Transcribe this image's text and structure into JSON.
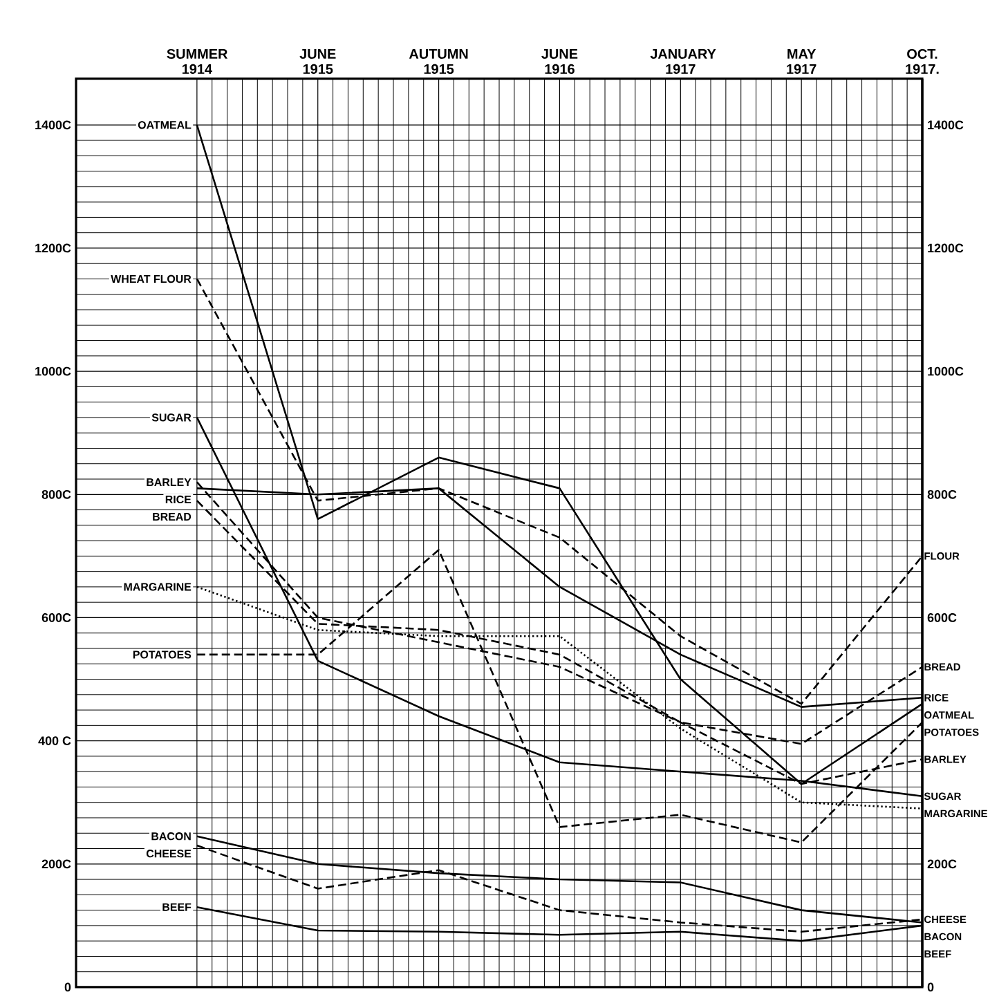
{
  "chart_data": {
    "type": "line",
    "categories": [
      "SUMMER 1914",
      "JUNE 1915",
      "AUTUMN 1915",
      "JUNE 1916",
      "JANUARY 1917",
      "MAY 1917",
      "OCT. 1917."
    ],
    "series": [
      {
        "name": "OATMEAL",
        "color": "#000000",
        "line_style": "solid",
        "values": [
          1400,
          760,
          860,
          810,
          500,
          330,
          460
        ]
      },
      {
        "name": "WHEAT FLOUR",
        "color": "#000000",
        "line_style": "dashed",
        "values": [
          1150,
          790,
          810,
          730,
          570,
          460,
          700
        ]
      },
      {
        "name": "SUGAR",
        "color": "#000000",
        "line_style": "solid",
        "values": [
          925,
          530,
          440,
          365,
          350,
          335,
          310
        ]
      },
      {
        "name": "BARLEY",
        "color": "#000000",
        "line_style": "dashed",
        "values": [
          820,
          600,
          560,
          520,
          430,
          330,
          370
        ]
      },
      {
        "name": "RICE",
        "color": "#000000",
        "line_style": "solid",
        "values": [
          810,
          800,
          810,
          650,
          540,
          455,
          470
        ]
      },
      {
        "name": "BREAD",
        "color": "#000000",
        "line_style": "dashed",
        "values": [
          790,
          590,
          580,
          540,
          430,
          395,
          520
        ]
      },
      {
        "name": "MARGARINE",
        "color": "#000000",
        "line_style": "dotted",
        "values": [
          650,
          580,
          570,
          570,
          420,
          300,
          290
        ]
      },
      {
        "name": "POTATOES",
        "color": "#000000",
        "line_style": "dashed",
        "values": [
          540,
          540,
          710,
          260,
          280,
          235,
          430
        ]
      },
      {
        "name": "BACON",
        "color": "#000000",
        "line_style": "solid",
        "values": [
          245,
          200,
          185,
          175,
          170,
          125,
          105
        ]
      },
      {
        "name": "CHEESE",
        "color": "#000000",
        "line_style": "dashed",
        "values": [
          230,
          160,
          190,
          125,
          105,
          90,
          110
        ]
      },
      {
        "name": "BEEF",
        "color": "#000000",
        "line_style": "solid",
        "values": [
          130,
          92,
          90,
          85,
          90,
          75,
          100
        ]
      }
    ],
    "ylim": [
      0,
      1475
    ],
    "yticks": [
      0,
      {
        "value": 200,
        "label": "200C"
      },
      {
        "value": 400,
        "label": "400 C"
      },
      {
        "value": 600,
        "label": "600C"
      },
      {
        "value": 800,
        "label": "800C"
      },
      {
        "value": 1000,
        "label": "1000C"
      },
      {
        "value": 1200,
        "label": "1200C"
      },
      {
        "value": 1400,
        "label": "1400C"
      }
    ],
    "y2lim": [
      0,
      1475
    ],
    "y2ticks": [
      0,
      {
        "value": 200,
        "label": "200C"
      },
      {
        "value": 600,
        "label": "600C"
      },
      {
        "value": 800,
        "label": "800C"
      },
      {
        "value": 1000,
        "label": "1000C"
      },
      {
        "value": 1200,
        "label": "1200C"
      },
      {
        "value": 1400,
        "label": "1400C"
      }
    ],
    "annotations": [
      {
        "text": "FLOUR",
        "x": "OCT. 1917.",
        "y": 700
      },
      {
        "text": "BREAD",
        "x": "OCT. 1917.",
        "y": 520
      },
      {
        "text": "RICE",
        "x": "OCT. 1917.",
        "y": 470
      },
      {
        "text": "OATMEAL",
        "x": "OCT. 1917.",
        "y": 460
      },
      {
        "text": "POTATOES",
        "x": "OCT. 1917.",
        "y": 430
      },
      {
        "text": "BARLEY",
        "x": "OCT. 1917.",
        "y": 370
      },
      {
        "text": "SUGAR",
        "x": "OCT. 1917.",
        "y": 310
      },
      {
        "text": "MARGARINE",
        "x": "OCT. 1917.",
        "y": 290
      },
      {
        "text": "CHEESE",
        "x": "OCT. 1917.",
        "y": 110
      },
      {
        "text": "BACON",
        "x": "OCT. 1917.",
        "y": 105
      },
      {
        "text": "BEEF",
        "x": "OCT. 1917.",
        "y": 100
      }
    ],
    "grid": true,
    "legend": false
  }
}
